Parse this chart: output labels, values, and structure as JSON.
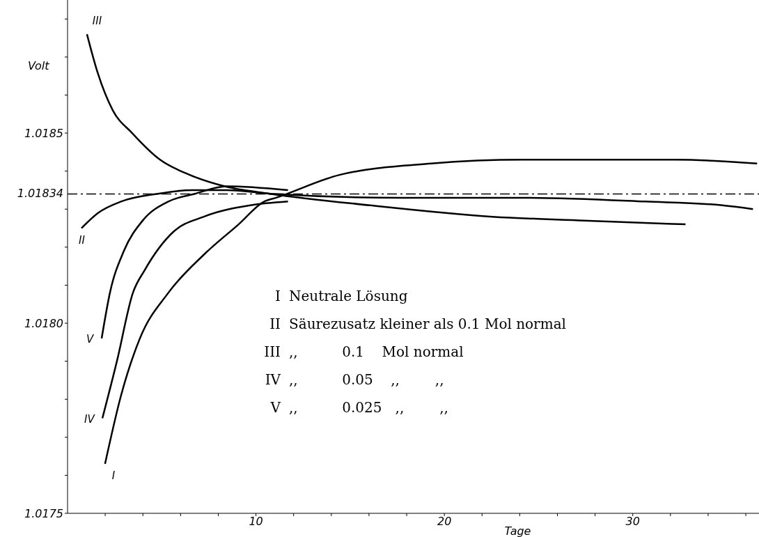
{
  "chart_data": {
    "type": "line",
    "xlabel": "Tage",
    "ylabel": "Volt",
    "xlim": [
      0,
      36.7
    ],
    "ylim": [
      1.0175,
      1.01885
    ],
    "xticks": [
      {
        "value": 2,
        "label": null
      },
      {
        "value": 4,
        "label": null
      },
      {
        "value": 6,
        "label": null
      },
      {
        "value": 8,
        "label": null
      },
      10,
      {
        "value": 12,
        "label": null
      },
      {
        "value": 14,
        "label": null
      },
      {
        "value": 16,
        "label": null
      },
      {
        "value": 18,
        "label": null
      },
      20,
      {
        "value": 22,
        "label": null
      },
      {
        "value": 24,
        "label": null
      },
      {
        "value": 26,
        "label": null
      },
      {
        "value": 28,
        "label": null
      },
      30,
      {
        "value": 32,
        "label": null
      },
      {
        "value": 34,
        "label": null
      },
      {
        "value": 36,
        "label": null
      }
    ],
    "yticks": [
      1.0175,
      {
        "value": 1.0176,
        "label": null
      },
      {
        "value": 1.0177,
        "label": null
      },
      {
        "value": 1.0178,
        "label": null
      },
      {
        "value": 1.0179,
        "label": null
      },
      {
        "value": 1.018,
        "label": "1.0180"
      },
      {
        "value": 1.0181,
        "label": null
      },
      {
        "value": 1.0182,
        "label": null
      },
      {
        "value": 1.0183,
        "label": null
      },
      {
        "value": 1.0184,
        "label": null
      },
      1.0185,
      {
        "value": 1.0186,
        "label": null
      },
      {
        "value": 1.0187,
        "label": null
      },
      {
        "value": 1.0188,
        "label": null
      }
    ],
    "grid": false,
    "legend": false,
    "marker": "none",
    "line_style": "solid",
    "ref_lines": [
      {
        "axis": "y",
        "value": 1.01834,
        "label": "1.01834",
        "color": "#000000",
        "line_style": "dashed"
      }
    ],
    "series": [
      {
        "name": "I",
        "color": "#000000",
        "x": [
          1.99,
          2.84,
          3.84,
          5.35,
          7.23,
          9.08,
          10.44,
          11.07,
          14.43,
          19.3,
          24.17,
          29.08,
          32.32,
          36.6
        ],
        "values": [
          1.01763,
          1.01781,
          1.01796,
          1.01808,
          1.01818,
          1.01826,
          1.01832,
          1.01833,
          1.01839,
          1.01842,
          1.01843,
          1.01843,
          1.01843,
          1.01842
        ]
      },
      {
        "name": "II",
        "color": "#000000",
        "x": [
          0.74,
          1.62,
          2.84,
          4.72,
          6.61,
          8.45,
          10.96,
          17.68,
          24.17,
          30.66,
          34.76,
          36.38
        ],
        "values": [
          1.01825,
          1.01829,
          1.01832,
          1.01834,
          1.01835,
          1.01835,
          1.01834,
          1.01833,
          1.01833,
          1.01832,
          1.01831,
          1.0183
        ]
      },
      {
        "name": "III",
        "color": "#000000",
        "x": [
          1.03,
          1.59,
          2.4,
          3.43,
          4.91,
          6.49,
          8.34,
          10.81,
          16.05,
          22.55,
          27.42,
          32.8
        ],
        "values": [
          1.01876,
          1.01866,
          1.01856,
          1.0185,
          1.01843,
          1.01839,
          1.01836,
          1.01834,
          1.01831,
          1.01828,
          1.01827,
          1.01826
        ]
      },
      {
        "name": "IV",
        "color": "#000000",
        "x": [
          1.85,
          2.62,
          3.47,
          4.1,
          5.61,
          7.23,
          9.7,
          11.7
        ],
        "values": [
          1.01775,
          1.0179,
          1.01808,
          1.01814,
          1.01824,
          1.01828,
          1.01831,
          1.01832
        ]
      },
      {
        "name": "V",
        "color": "#000000",
        "x": [
          1.81,
          2.25,
          2.99,
          3.99,
          5.35,
          6.72,
          8.45,
          11.7
        ],
        "values": [
          1.01796,
          1.01808,
          1.01819,
          1.01827,
          1.01832,
          1.01834,
          1.01836,
          1.01835
        ]
      }
    ],
    "annotations": [
      "I Neutrale Lösung",
      "II Säurezusatz kleiner als 0.1 Mol normal",
      "III ,,          0.1    Mol normal",
      "IV ,,          0.05    ,,        ,,",
      "V ,,          0.025   ,,        ,,"
    ]
  }
}
